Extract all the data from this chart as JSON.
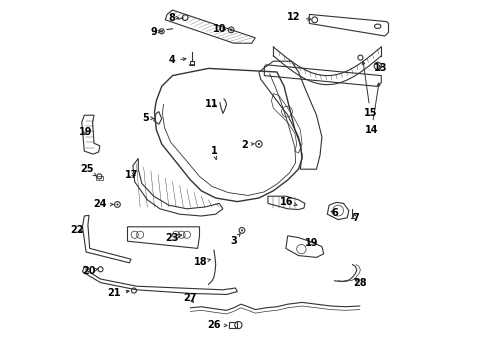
{
  "bg_color": "#ffffff",
  "line_color": "#333333",
  "text_color": "#000000",
  "fig_width": 4.89,
  "fig_height": 3.6,
  "dpi": 100
}
